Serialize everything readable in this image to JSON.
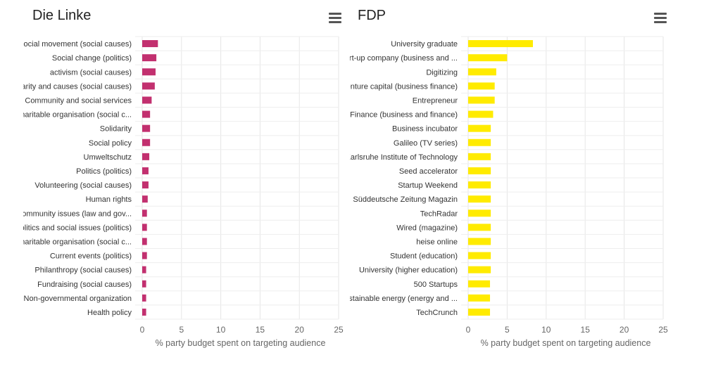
{
  "chart_data": [
    {
      "type": "bar",
      "orientation": "horizontal",
      "title": "Die Linke",
      "xlabel": "% party budget spent on targeting audience",
      "xlim": [
        0,
        25
      ],
      "xticks": [
        "0",
        "5",
        "10",
        "15",
        "20",
        "25"
      ],
      "grid": true,
      "color": "#c2306f",
      "categories": [
        "Social movement (social causes)",
        "Social change (politics)",
        "activism (social causes)",
        "Charity and causes (social causes)",
        "Community and social services",
        "Charitable organisation (social c...",
        "Solidarity",
        "Social policy",
        "Umweltschutz",
        "Politics (politics)",
        "Volunteering (social causes)",
        "Human rights",
        "Community issues (law and gov...",
        "politics and social issues (politics)",
        "Charitable organisation (social c...",
        "Current events (politics)",
        "Philanthropy (social causes)",
        "Fundraising (social causes)",
        "Non-governmental organization",
        "Health policy"
      ],
      "values": [
        2.0,
        1.8,
        1.7,
        1.6,
        1.2,
        1.0,
        1.0,
        1.0,
        0.9,
        0.8,
        0.8,
        0.7,
        0.6,
        0.6,
        0.6,
        0.6,
        0.5,
        0.5,
        0.5,
        0.5
      ]
    },
    {
      "type": "bar",
      "orientation": "horizontal",
      "title": "FDP",
      "xlabel": "% party budget spent on targeting audience",
      "xlim": [
        0,
        25
      ],
      "xticks": [
        "0",
        "5",
        "10",
        "15",
        "20",
        "25"
      ],
      "grid": true,
      "color": "#ffeb00",
      "categories": [
        "University graduate",
        "Start-up company (business and ...",
        "Digitizing",
        "Venture capital (business finance)",
        "Entrepreneur",
        "Finance (business and finance)",
        "Business incubator",
        "Galileo (TV series)",
        "Karlsruhe Institute of Technology",
        "Seed accelerator",
        "Startup Weekend",
        "Süddeutsche Zeitung Magazin",
        "TechRadar",
        "Wired (magazine)",
        "heise online",
        "Student (education)",
        "University (higher education)",
        "500 Startups",
        "Sustainable energy (energy and ...",
        "TechCrunch"
      ],
      "values": [
        8.3,
        5.0,
        3.6,
        3.4,
        3.4,
        3.2,
        2.9,
        2.9,
        2.9,
        2.9,
        2.9,
        2.9,
        2.9,
        2.9,
        2.9,
        2.9,
        2.9,
        2.8,
        2.8,
        2.8
      ]
    }
  ],
  "icons": {
    "menu": "hamburger-menu-icon"
  }
}
